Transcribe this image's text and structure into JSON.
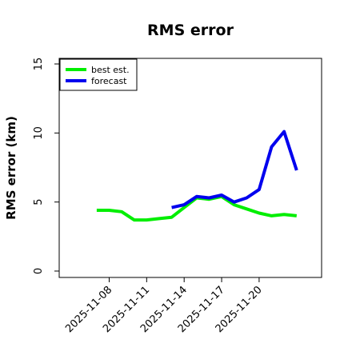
{
  "chart_data": {
    "type": "line",
    "title": "RMS error",
    "xlabel": "",
    "ylabel": "RMS error (km)",
    "x": [
      "2025-11-07",
      "2025-11-08",
      "2025-11-09",
      "2025-11-10",
      "2025-11-11",
      "2025-11-12",
      "2025-11-13",
      "2025-11-14",
      "2025-11-15",
      "2025-11-16",
      "2025-11-17",
      "2025-11-18",
      "2025-11-19",
      "2025-11-20",
      "2025-11-21",
      "2025-11-22",
      "2025-11-23"
    ],
    "x_ticks": [
      "2025-11-08",
      "2025-11-11",
      "2025-11-14",
      "2025-11-17",
      "2025-11-20"
    ],
    "xlim": [
      "2025-11-04",
      "2025-11-25"
    ],
    "ylim": [
      0,
      15
    ],
    "y_ticks": [
      "0",
      "5",
      "10",
      "15"
    ],
    "grid": false,
    "legend_position": "top-left",
    "series": [
      {
        "name": "best est.",
        "color": "#00ee00",
        "values": [
          4.4,
          4.4,
          4.3,
          3.7,
          3.7,
          3.8,
          3.9,
          4.6,
          5.3,
          5.2,
          5.4,
          4.8,
          4.5,
          4.2,
          4.0,
          4.1,
          4.0
        ]
      },
      {
        "name": "forecast",
        "color": "#0000ee",
        "values": [
          null,
          null,
          null,
          null,
          null,
          null,
          4.6,
          4.8,
          5.4,
          5.3,
          5.5,
          5.0,
          5.3,
          5.9,
          9.0,
          10.1,
          7.3
        ]
      }
    ]
  }
}
